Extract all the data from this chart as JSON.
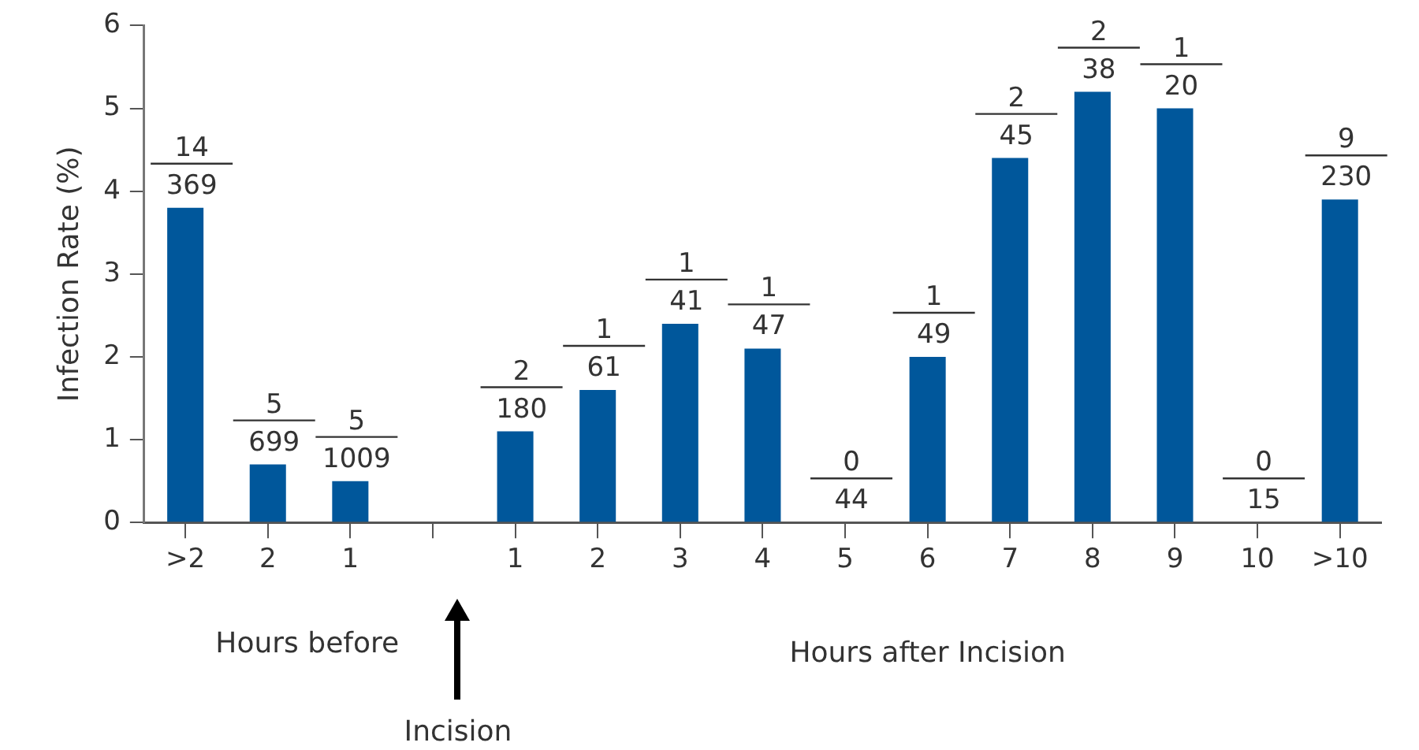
{
  "chart_data": {
    "type": "bar",
    "ylabel": "Infection Rate (%)",
    "categories": [
      ">2",
      "2",
      "1",
      null,
      "1",
      "2",
      "3",
      "4",
      "5",
      "6",
      "7",
      "8",
      "9",
      "10",
      ">10"
    ],
    "values": [
      3.8,
      0.7,
      0.5,
      null,
      1.1,
      1.6,
      2.4,
      2.1,
      0,
      2.0,
      4.4,
      5.2,
      5.0,
      0,
      3.9
    ],
    "color": "#00579b",
    "ylim": [
      0,
      6
    ],
    "yticks": [
      0,
      1,
      2,
      3,
      4,
      5,
      6
    ],
    "grid": false,
    "legend": false,
    "annotations": [
      "Hours before",
      "Hours after Incision",
      "Incision",
      "14\n369",
      "5\n699",
      "5\n1009",
      "2\n180",
      "1\n61",
      "1\n41",
      "1\n47",
      "0\n44",
      "1\n49",
      "2\n45",
      "2\n38",
      "1\n20",
      "0\n15",
      "9\n230"
    ]
  }
}
